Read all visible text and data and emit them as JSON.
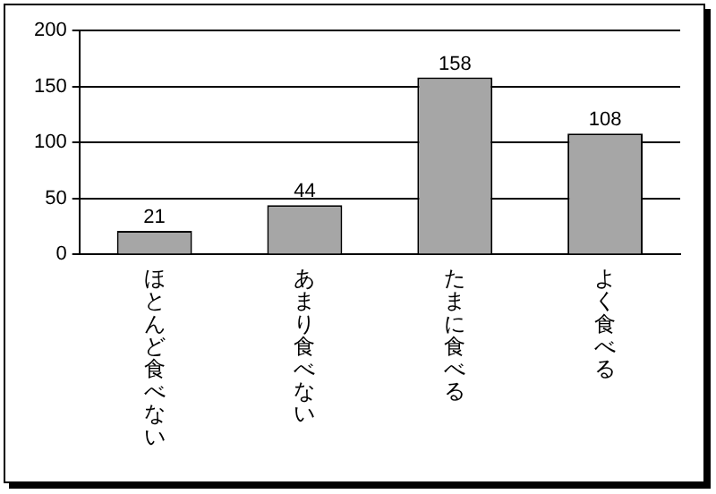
{
  "chart_data": {
    "type": "bar",
    "categories": [
      "ほとんど食べない",
      "あまり食べない",
      "たまに食べる",
      "よく食べる"
    ],
    "values": [
      21,
      44,
      158,
      108
    ],
    "color": "#a6a6a6",
    "ylim": [
      0,
      200
    ],
    "yticks": [
      0,
      50,
      100,
      150,
      200
    ],
    "grid": "y",
    "data_labels": true
  }
}
